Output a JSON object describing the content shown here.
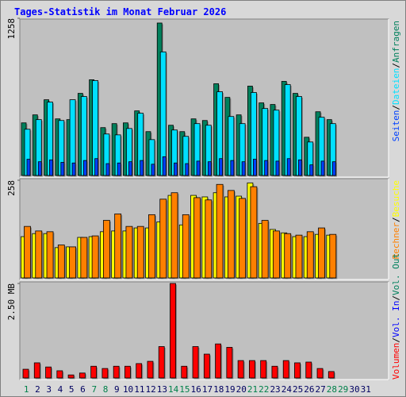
{
  "title": "Tages-Statistik im Monat Februar 2026",
  "categories": [
    "1",
    "2",
    "3",
    "4",
    "5",
    "6",
    "7",
    "8",
    "9",
    "10",
    "11",
    "12",
    "13",
    "14",
    "15",
    "16",
    "17",
    "18",
    "19",
    "20",
    "21",
    "22",
    "23",
    "24",
    "25",
    "26",
    "27",
    "28",
    "29",
    "30",
    "31"
  ],
  "category_colors": [
    "#00804a",
    "#000060",
    "#000060",
    "#000060",
    "#000060",
    "#000060",
    "#00804a",
    "#00804a",
    "#000060",
    "#000060",
    "#000060",
    "#000060",
    "#000060",
    "#00804a",
    "#00804a",
    "#000060",
    "#000060",
    "#000060",
    "#000060",
    "#000060",
    "#00804a",
    "#00804a",
    "#000060",
    "#000060",
    "#000060",
    "#000060",
    "#000060",
    "#00804a",
    "#00804a",
    "#000060",
    "#000060"
  ],
  "legend_separator": "/",
  "chart_data": [
    {
      "type": "bar",
      "ylim": [
        0,
        1258
      ],
      "yticks": [
        1258
      ],
      "series": [
        {
          "name": "Anfragen",
          "color": "#00805c",
          "values": [
            421,
            485,
            606,
            453,
            447,
            657,
            766,
            383,
            415,
            421,
            517,
            351,
            1220,
            402,
            351,
            453,
            440,
            734,
            625,
            485,
            715,
            581,
            568,
            753,
            657,
            306,
            510,
            447,
            null,
            null,
            null
          ]
        },
        {
          "name": "Dateien",
          "color": "#00e0ff",
          "values": [
            370,
            447,
            587,
            440,
            606,
            632,
            759,
            332,
            325,
            376,
            498,
            287,
            989,
            364,
            313,
            415,
            402,
            670,
            472,
            415,
            664,
            536,
            523,
            727,
            632,
            268,
            466,
            415,
            null,
            null,
            null
          ]
        },
        {
          "name": "Seiten",
          "color": "#0040ff",
          "values": [
            130,
            110,
            125,
            105,
            100,
            120,
            135,
            95,
            100,
            110,
            120,
            90,
            150,
            100,
            95,
            115,
            110,
            135,
            120,
            110,
            130,
            120,
            115,
            135,
            125,
            85,
            115,
            110,
            null,
            null,
            null
          ]
        }
      ]
    },
    {
      "type": "bar",
      "ylim": [
        0,
        258
      ],
      "yticks": [
        258
      ],
      "series": [
        {
          "name": "Besuche",
          "color": "#ffff00",
          "values": [
            109,
            117,
            117,
            80,
            82,
            107,
            109,
            122,
            124,
            124,
            132,
            132,
            148,
            218,
            140,
            218,
            214,
            225,
            214,
            216,
            251,
            144,
            128,
            119,
            109,
            109,
            115,
            113,
            null,
            null,
            null
          ]
        },
        {
          "name": "Rechner",
          "color": "#ff8000",
          "values": [
            136,
            124,
            122,
            87,
            82,
            107,
            111,
            152,
            169,
            136,
            136,
            167,
            208,
            225,
            167,
            212,
            206,
            247,
            231,
            210,
            241,
            152,
            124,
            117,
            113,
            122,
            132,
            115,
            null,
            null,
            null
          ]
        }
      ]
    },
    {
      "type": "bar",
      "ylim": [
        0,
        2.5
      ],
      "yticks": [
        {
          "value": 2.5,
          "label": "2.50 MB"
        }
      ],
      "series": [
        {
          "name": "Volumen",
          "color": "#ff0000",
          "values": [
            0.23,
            0.4,
            0.29,
            0.19,
            0.08,
            0.13,
            0.31,
            0.25,
            0.31,
            0.31,
            0.38,
            0.44,
            0.83,
            2.5,
            0.31,
            0.83,
            0.63,
            0.9,
            0.81,
            0.46,
            0.46,
            0.46,
            0.31,
            0.46,
            0.4,
            0.42,
            0.25,
            0.17,
            null,
            null,
            null
          ]
        }
      ],
      "extra_legend": [
        {
          "name": "Vol. In",
          "color": "#0000ff"
        },
        {
          "name": "Vol. Out",
          "color": "#00805c"
        }
      ]
    }
  ]
}
